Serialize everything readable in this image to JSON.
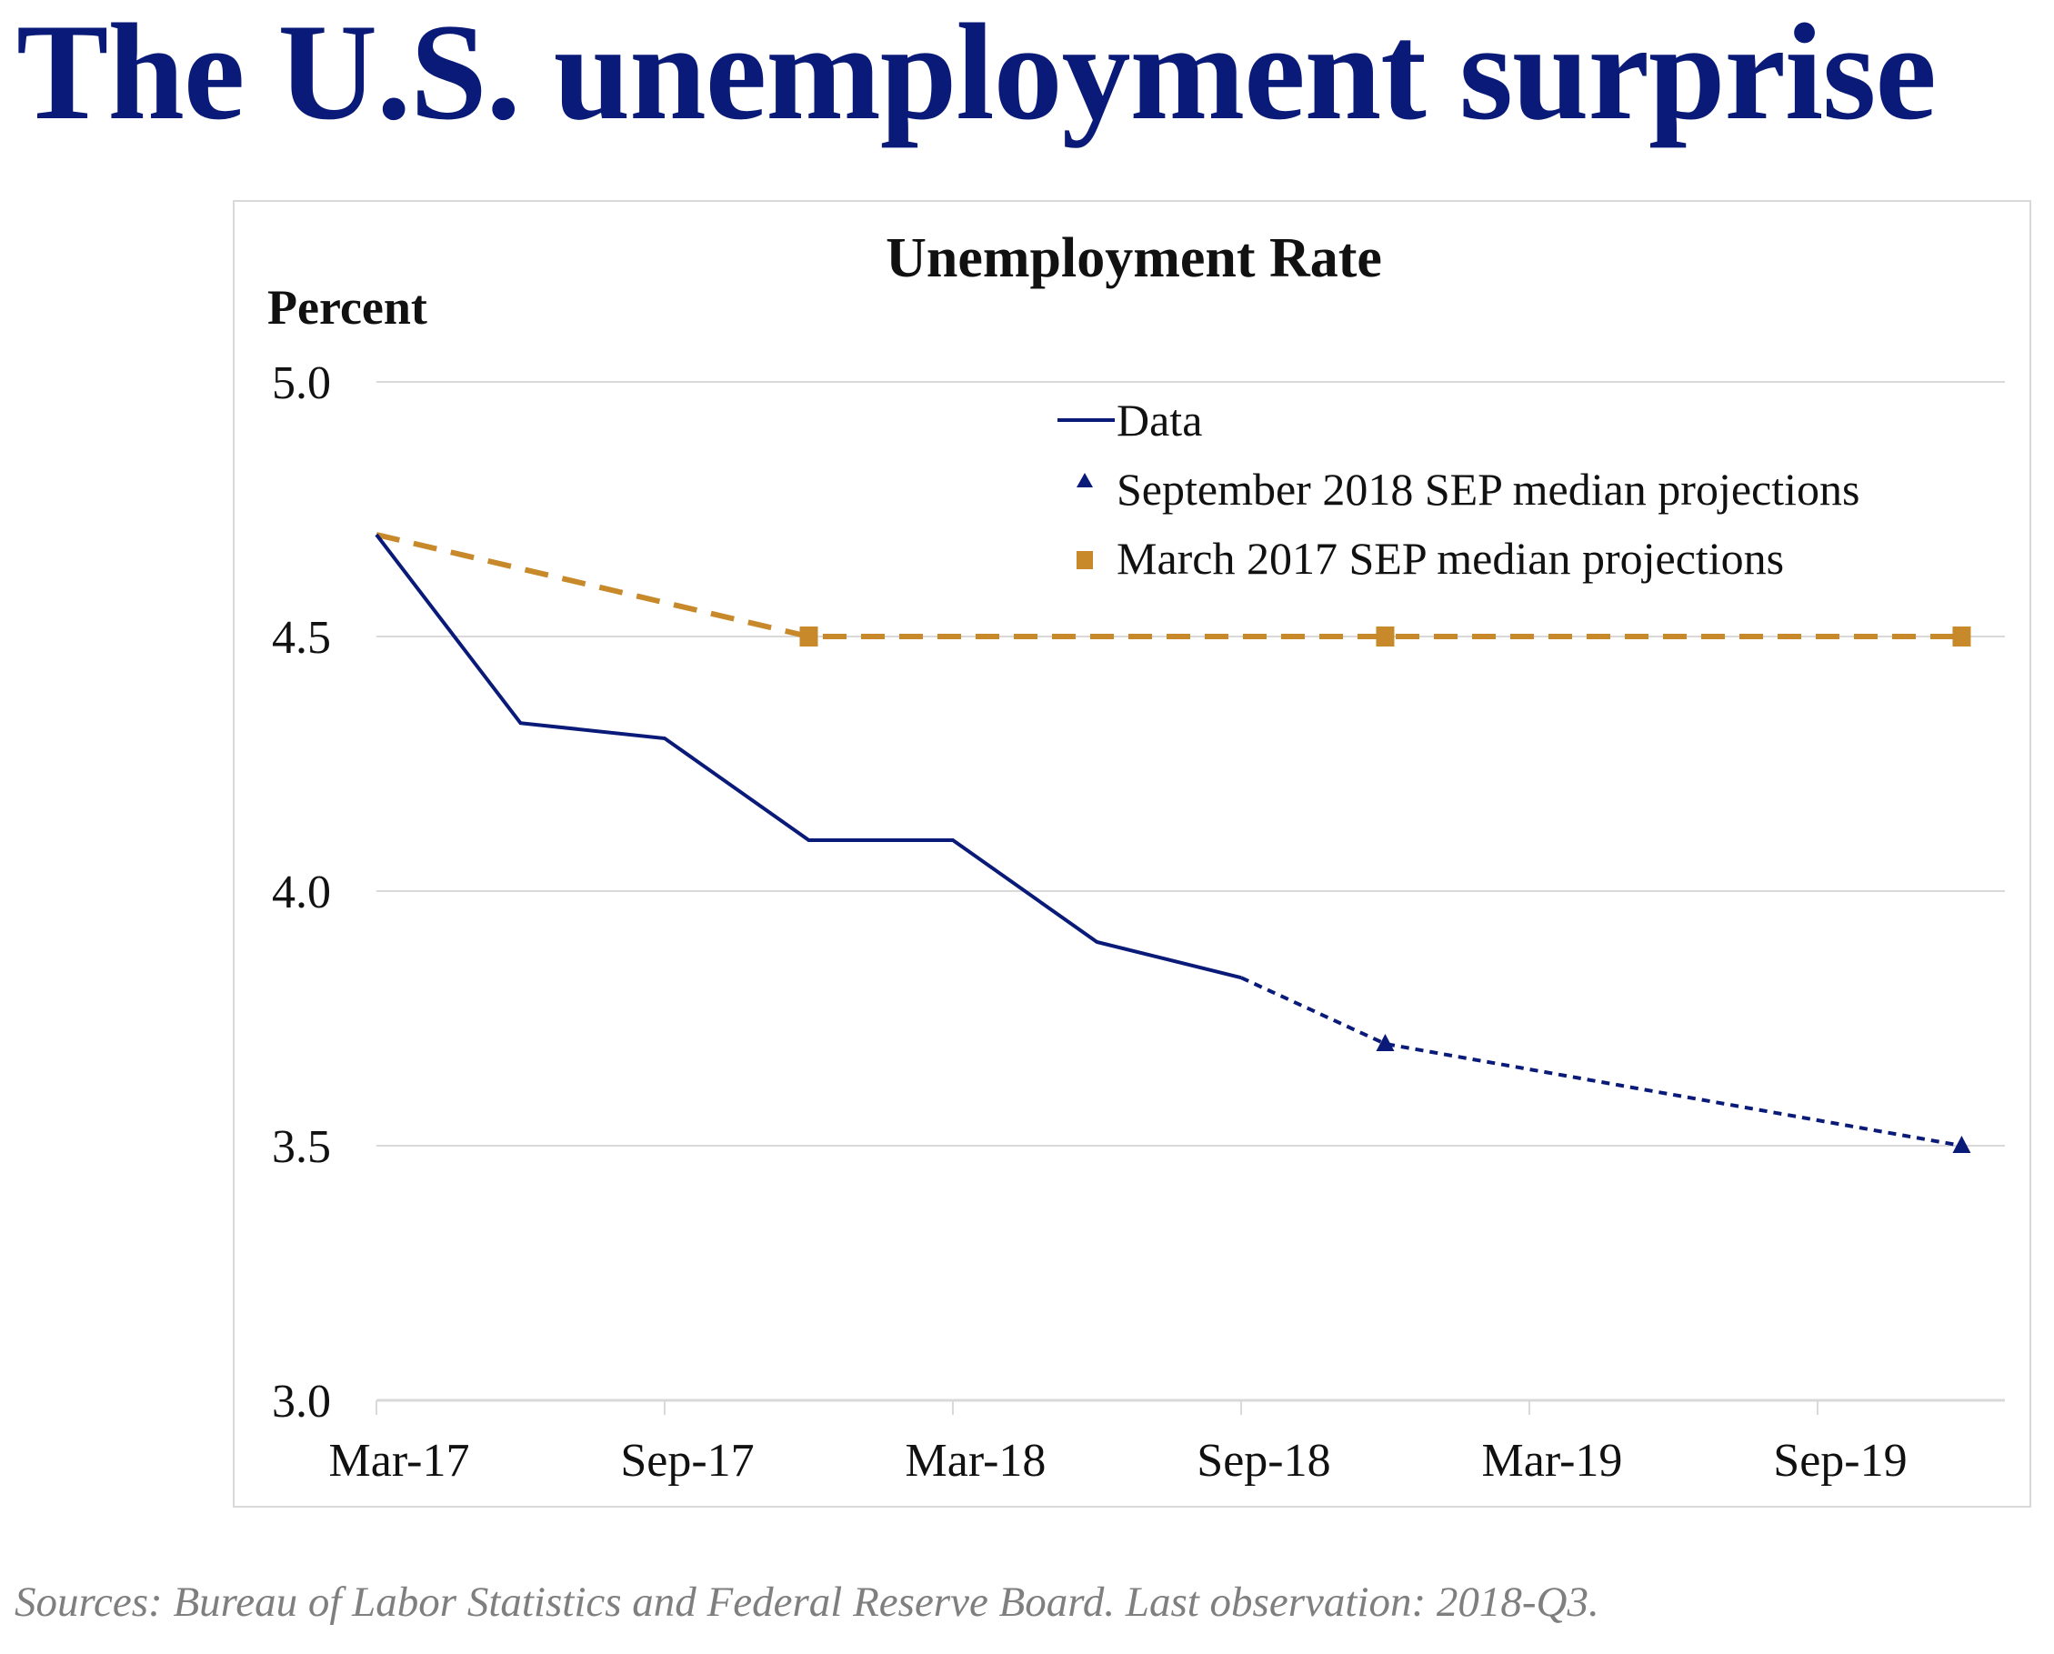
{
  "page": {
    "title": "The U.S. unemployment surprise",
    "source_note": "Sources: Bureau of Labor Statistics and Federal Reserve Board. Last observation: 2018-Q3."
  },
  "colors": {
    "title": "#0a1a78",
    "data_line": "#0a1a78",
    "march_2017_sep": "#c8892b",
    "grid": "#d9d9d9",
    "source": "#7f7f7f"
  },
  "chart_data": {
    "type": "line",
    "title": "Unemployment Rate",
    "ylabel": "Percent",
    "xlabel": "",
    "ylim": [
      3.0,
      5.0
    ],
    "yticks": [
      "5.0",
      "4.5",
      "4.0",
      "3.5",
      "3.0"
    ],
    "ytick_values": [
      5.0,
      4.5,
      4.0,
      3.5,
      3.0
    ],
    "xtick_labels": [
      "Mar-17",
      "Sep-17",
      "Mar-18",
      "Sep-18",
      "Mar-19",
      "Sep-19"
    ],
    "xtick_quarters": [
      0,
      2,
      4,
      6,
      8,
      10
    ],
    "grid": true,
    "legend_position": "top-right",
    "series": [
      {
        "name": "Data",
        "style": "solid-line",
        "points": [
          {
            "q": 0,
            "label": "2017-Q1",
            "value": 4.7
          },
          {
            "q": 1,
            "label": "2017-Q2",
            "value": 4.33
          },
          {
            "q": 2,
            "label": "2017-Q3",
            "value": 4.3
          },
          {
            "q": 3,
            "label": "2017-Q4",
            "value": 4.1
          },
          {
            "q": 4,
            "label": "2018-Q1",
            "value": 4.1
          },
          {
            "q": 5,
            "label": "2018-Q2",
            "value": 3.9
          },
          {
            "q": 6,
            "label": "2018-Q3",
            "value": 3.83
          }
        ]
      },
      {
        "name": "September 2018 SEP median projections",
        "style": "dotted-line-triangle",
        "points": [
          {
            "q": 6,
            "label": "2018-Q3",
            "value": 3.83
          },
          {
            "q": 7,
            "label": "2018-Q4",
            "value": 3.7,
            "marker": true
          },
          {
            "q": 11,
            "label": "2019-Q4",
            "value": 3.5,
            "marker": true
          }
        ]
      },
      {
        "name": "March 2017 SEP median projections",
        "style": "dashed-line-square",
        "points": [
          {
            "q": 0,
            "label": "2017-Q1",
            "value": 4.7
          },
          {
            "q": 3,
            "label": "2017-Q4",
            "value": 4.5,
            "marker": true
          },
          {
            "q": 7,
            "label": "2018-Q4",
            "value": 4.5,
            "marker": true
          },
          {
            "q": 11,
            "label": "2019-Q4",
            "value": 4.5,
            "marker": true
          }
        ]
      }
    ]
  }
}
